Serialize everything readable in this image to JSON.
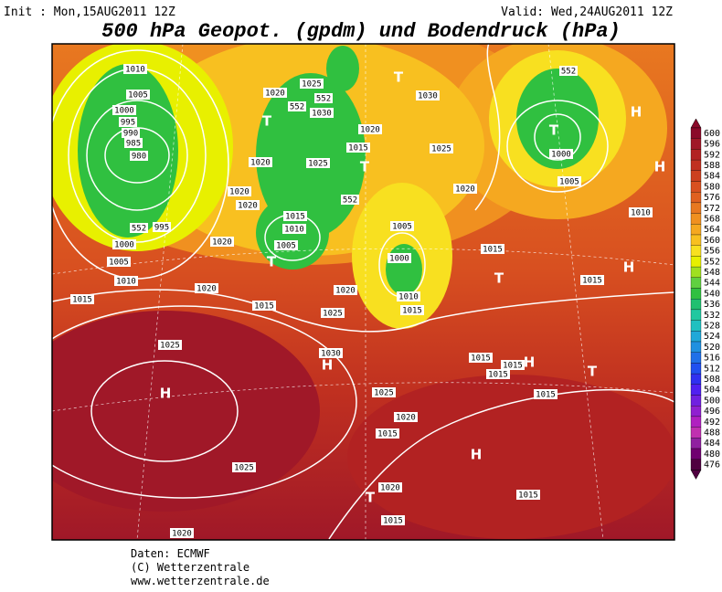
{
  "header": {
    "init": "Init : Mon,15AUG2011 12Z",
    "valid": "Valid: Wed,24AUG2011 12Z",
    "title": "500 hPa Geopot. (gpdm) und Bodendruck (hPa)"
  },
  "colorbar": {
    "ticks": [
      600,
      596,
      592,
      588,
      584,
      580,
      576,
      572,
      568,
      564,
      560,
      556,
      552,
      548,
      544,
      540,
      536,
      532,
      528,
      524,
      520,
      516,
      512,
      508,
      504,
      500,
      496,
      492,
      488,
      484,
      480,
      476
    ],
    "colors": [
      "#8b0a2a",
      "#a01828",
      "#b22222",
      "#c03020",
      "#cc4020",
      "#d85020",
      "#e06020",
      "#e87820",
      "#f09020",
      "#f5a820",
      "#f8c020",
      "#f8e020",
      "#e8f000",
      "#a0e020",
      "#60d040",
      "#30c040",
      "#20c070",
      "#20c8a0",
      "#20c0c0",
      "#20a8d8",
      "#2090e0",
      "#2070e8",
      "#2050f0",
      "#3030f0",
      "#5020f0",
      "#7020e0",
      "#9020d0",
      "#b020c0",
      "#c030b0",
      "#9020a0",
      "#700070",
      "#500040"
    ]
  },
  "map": {
    "isobar_labels": [
      "1010",
      "1005",
      "1000",
      "995",
      "990",
      "985",
      "980",
      "552",
      "995",
      "1000",
      "1005",
      "1010",
      "1015",
      "1020",
      "1020",
      "1015",
      "1025",
      "1020",
      "1025",
      "1030",
      "1025",
      "1020",
      "1015",
      "1020",
      "1015",
      "1025",
      "1020",
      "1015",
      "1015",
      "1015",
      "1015",
      "1015",
      "1015",
      "1015",
      "1010",
      "1005",
      "1000",
      "552",
      "1025",
      "1020",
      "1030",
      "1020",
      "1015",
      "552",
      "1025",
      "1020",
      "552",
      "552",
      "1025",
      "1030",
      "1020",
      "1020",
      "1020",
      "1015",
      "1010",
      "1005",
      "1005",
      "1000",
      "1010",
      "1015"
    ],
    "centers": [
      "T",
      "T",
      "T",
      "T",
      "T",
      "H",
      "H",
      "H",
      "T",
      "H",
      "T",
      "H",
      "H",
      "H",
      "T"
    ]
  },
  "footer": {
    "source": "Daten: ECMWF",
    "copyright": "(C) Wetterzentrale",
    "url": "www.wetterzentrale.de"
  }
}
